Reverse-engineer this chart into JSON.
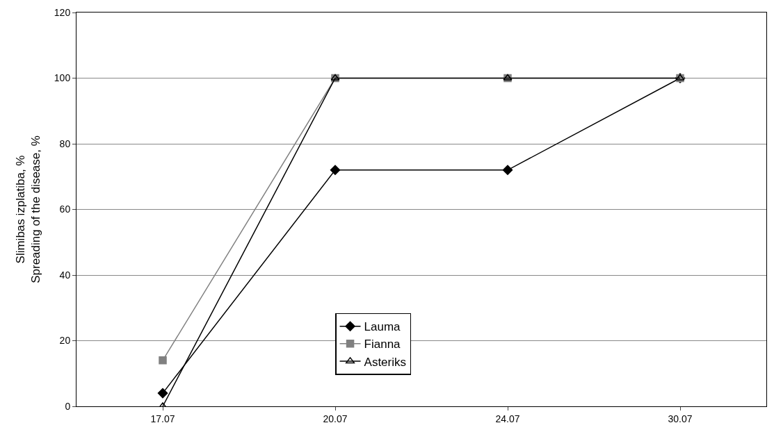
{
  "chart_data": {
    "type": "line",
    "ylabel": "Slimibas izplatiba, %\nSpreading of the disease, %",
    "categories": [
      "17.07",
      "20.07",
      "24.07",
      "30.07"
    ],
    "series": [
      {
        "name": "Lauma",
        "color": "#000000",
        "marker": "diamond",
        "values": [
          4,
          72,
          72,
          100
        ]
      },
      {
        "name": "Fianna",
        "color": "#808080",
        "marker": "square",
        "values": [
          14,
          100,
          100,
          100
        ]
      },
      {
        "name": "Asteriks",
        "color": "#000000",
        "marker": "triangle",
        "values": [
          0,
          100,
          100,
          100
        ]
      }
    ],
    "ylim": [
      0,
      120
    ],
    "yticks": [
      0,
      20,
      40,
      60,
      80,
      100,
      120
    ],
    "grid": "y",
    "legend": "bottom",
    "line_style": "solid"
  }
}
